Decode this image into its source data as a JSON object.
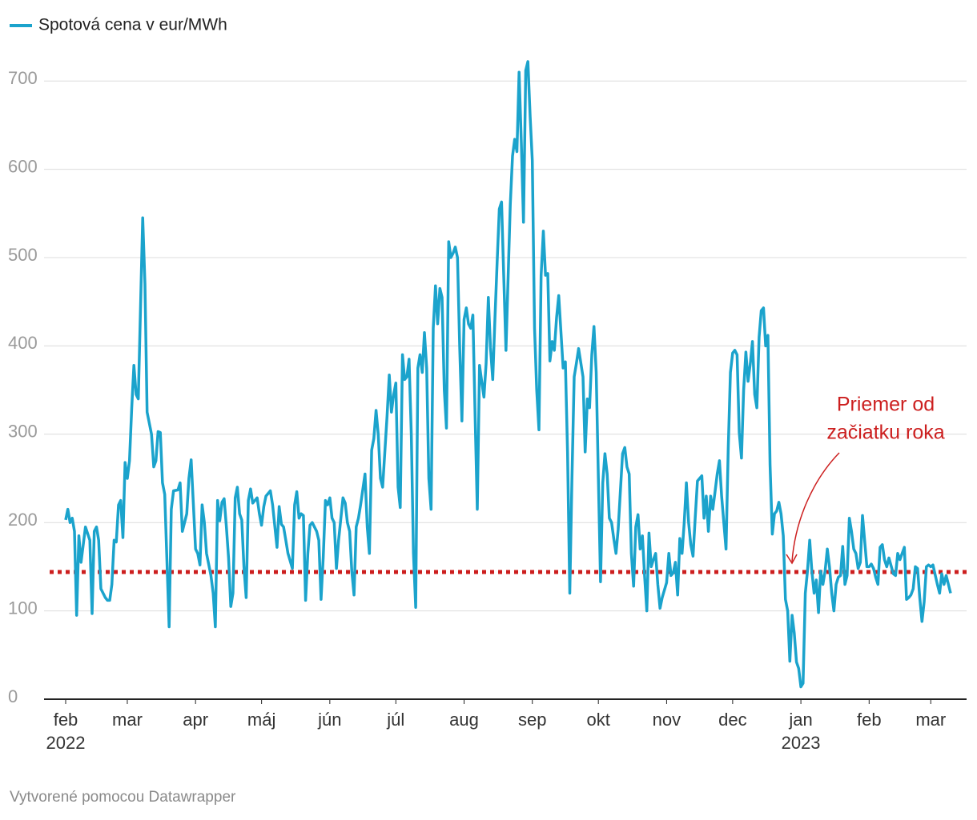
{
  "chart_data": {
    "type": "line",
    "x": [
      0,
      1,
      2,
      3,
      4,
      5,
      6,
      7,
      9,
      11,
      12,
      13,
      14,
      15,
      16,
      18,
      19,
      20,
      21,
      22,
      23,
      24,
      25,
      26,
      27,
      28,
      29,
      30,
      31,
      32,
      33,
      35,
      36,
      37,
      39,
      40,
      41,
      42,
      43,
      44,
      45,
      47,
      48,
      49,
      51,
      52,
      53,
      55,
      56,
      57,
      58,
      59,
      60,
      61,
      62,
      63,
      64,
      66,
      67,
      68,
      69,
      70,
      71,
      72,
      73,
      74,
      75,
      76,
      77,
      78,
      79,
      80,
      81,
      82,
      83,
      84,
      85,
      87,
      88,
      89,
      90,
      91,
      93,
      94,
      96,
      97,
      98,
      99,
      100,
      101,
      103,
      104,
      105,
      106,
      107,
      108,
      109,
      110,
      111,
      112,
      114,
      115,
      116,
      117,
      118,
      119,
      120,
      121,
      122,
      123,
      124,
      126,
      127,
      128,
      129,
      130,
      131,
      132,
      133,
      134,
      136,
      137,
      138,
      139,
      140,
      141,
      142,
      143,
      144,
      146,
      147,
      148,
      149,
      150,
      151,
      152,
      153,
      154,
      155,
      156,
      157,
      158,
      159,
      160,
      161,
      162,
      163,
      164,
      165,
      166,
      167,
      168,
      169,
      170,
      171,
      172,
      173,
      174,
      175,
      176,
      177,
      178,
      179,
      180,
      181,
      182,
      183,
      184,
      185,
      186,
      187,
      188,
      189,
      190,
      191,
      192,
      193,
      194,
      195,
      196,
      197,
      198,
      199,
      200,
      202,
      203,
      204,
      205,
      206,
      207,
      208,
      209,
      210,
      211,
      212,
      213,
      214,
      215,
      216,
      217,
      218,
      219,
      220,
      221,
      222,
      223,
      224,
      226,
      227,
      228,
      229,
      230,
      231,
      232,
      233,
      235,
      236,
      237,
      238,
      239,
      240,
      241,
      242,
      243,
      244,
      245,
      246,
      247,
      248,
      249,
      250,
      251,
      253,
      254,
      255,
      256,
      257,
      258,
      259,
      260,
      261,
      262,
      263,
      264,
      265,
      266,
      267,
      268,
      269,
      270,
      271,
      273,
      274,
      275,
      276,
      277,
      278,
      279,
      280,
      281,
      282,
      283,
      284,
      285,
      286,
      287,
      289,
      290,
      291,
      292,
      293,
      294,
      295,
      296,
      297,
      298,
      300,
      301,
      302,
      303,
      304,
      305,
      306,
      307,
      308,
      309,
      310,
      311,
      312,
      313,
      314,
      315,
      316,
      317,
      318,
      319,
      320,
      321,
      322,
      323,
      324,
      325,
      326,
      327,
      328,
      329,
      330,
      331,
      332,
      333,
      334,
      335,
      336,
      337,
      338,
      339,
      340,
      341,
      342,
      343,
      344,
      345,
      346,
      347,
      348,
      349,
      350,
      351,
      352,
      353,
      354,
      355,
      356,
      357,
      358,
      359,
      360,
      361,
      362,
      364,
      365,
      366,
      367,
      368,
      369,
      370,
      371,
      372,
      373,
      374,
      376,
      377,
      378,
      379,
      380,
      381,
      382,
      383,
      384,
      385,
      386,
      387,
      388,
      389,
      390,
      391,
      392,
      393,
      394,
      396,
      397,
      398,
      399,
      400,
      401,
      402
    ],
    "series": [
      {
        "name": "Spotová cena v eur/MWh",
        "color": "#1ba3cc",
        "values": [
          203,
          215,
          200,
          205,
          190,
          95,
          185,
          155,
          195,
          180,
          97,
          190,
          195,
          180,
          125,
          115,
          112,
          112,
          130,
          180,
          178,
          220,
          225,
          183,
          268,
          250,
          270,
          330,
          378,
          345,
          340,
          545,
          470,
          325,
          300,
          263,
          270,
          303,
          302,
          245,
          232,
          82,
          215,
          236,
          237,
          245,
          190,
          210,
          250,
          271,
          222,
          170,
          165,
          152,
          220,
          200,
          165,
          140,
          120,
          82,
          225,
          202,
          223,
          227,
          195,
          160,
          105,
          120,
          228,
          240,
          210,
          203,
          150,
          115,
          225,
          238,
          222,
          228,
          210,
          197,
          218,
          230,
          236,
          220,
          172,
          218,
          198,
          195,
          180,
          165,
          148,
          220,
          235,
          205,
          210,
          208,
          112,
          165,
          197,
          200,
          190,
          180,
          113,
          160,
          225,
          220,
          228,
          205,
          200,
          148,
          180,
          228,
          222,
          200,
          190,
          145,
          118,
          195,
          205,
          220,
          255,
          195,
          165,
          282,
          295,
          327,
          300,
          250,
          240,
          320,
          367,
          325,
          345,
          358,
          240,
          217,
          390,
          362,
          365,
          385,
          300,
          165,
          104,
          375,
          390,
          370,
          415,
          375,
          250,
          215,
          420,
          468,
          425,
          465,
          455,
          350,
          307,
          518,
          500,
          505,
          512,
          500,
          400,
          315,
          430,
          443,
          425,
          420,
          435,
          320,
          215,
          378,
          360,
          342,
          380,
          455,
          398,
          362,
          430,
          495,
          555,
          563,
          480,
          395,
          560,
          615,
          634,
          620,
          710,
          630,
          540,
          712,
          722,
          660,
          610,
          420,
          350,
          305,
          480,
          530,
          480,
          482,
          383,
          405,
          395,
          432,
          457,
          375,
          382,
          280,
          120,
          250,
          365,
          380,
          397,
          365,
          280,
          340,
          330,
          390,
          422,
          370,
          250,
          133,
          245,
          278,
          255,
          205,
          200,
          182,
          165,
          192,
          278,
          285,
          263,
          255,
          165,
          128,
          195,
          209,
          170,
          185,
          140,
          100,
          188,
          150,
          158,
          165,
          130,
          103,
          115,
          132,
          165,
          140,
          143,
          155,
          118,
          182,
          165,
          200,
          245,
          200,
          175,
          162,
          205,
          247,
          253,
          205,
          230,
          190,
          230,
          215,
          235,
          255,
          270,
          230,
          170,
          285,
          370,
          392,
          395,
          390,
          302,
          273,
          350,
          393,
          360,
          380,
          405,
          345,
          330,
          410,
          440,
          443,
          400,
          412,
          265,
          187,
          210,
          213,
          223,
          210,
          185,
          113,
          100,
          43,
          95,
          75,
          42,
          35,
          14,
          18,
          120,
          145,
          180,
          145,
          120,
          135,
          98,
          145,
          130,
          145,
          170,
          150,
          120,
          100,
          130,
          138,
          140,
          173,
          130,
          140,
          205,
          190,
          170,
          165,
          148,
          155,
          208,
          150,
          150,
          153,
          148,
          138,
          130,
          172,
          175,
          158,
          150,
          160,
          142,
          140,
          165,
          158,
          165,
          172,
          113,
          115,
          118,
          125,
          150,
          148,
          115,
          88,
          110,
          150,
          152,
          150,
          152,
          130,
          120,
          142,
          130,
          140,
          130,
          120
        ]
      }
    ],
    "xlim": [
      0,
      402
    ],
    "xticks": [
      {
        "value": 0,
        "label": "feb"
      },
      {
        "value": 28,
        "label": "mar"
      },
      {
        "value": 59,
        "label": "apr"
      },
      {
        "value": 89,
        "label": "máj"
      },
      {
        "value": 120,
        "label": "jún"
      },
      {
        "value": 150,
        "label": "júl"
      },
      {
        "value": 181,
        "label": "aug"
      },
      {
        "value": 212,
        "label": "sep"
      },
      {
        "value": 242,
        "label": "okt"
      },
      {
        "value": 273,
        "label": "nov"
      },
      {
        "value": 303,
        "label": "dec"
      },
      {
        "value": 334,
        "label": "jan"
      },
      {
        "value": 365,
        "label": "feb"
      },
      {
        "value": 393,
        "label": "mar"
      }
    ],
    "year_labels": [
      {
        "value": 0,
        "label": "2022"
      },
      {
        "value": 334,
        "label": "2023"
      }
    ],
    "ylim": [
      0,
      750
    ],
    "yticks": [
      0,
      100,
      200,
      300,
      400,
      500,
      600,
      700
    ],
    "grid": true,
    "reference_line": {
      "value": 144,
      "color": "#cc1f1f"
    },
    "annotation": {
      "lines": [
        "Priemer od",
        "začiatku roka"
      ],
      "color": "#cc1f1f"
    },
    "credit": "Vytvorené pomocou Datawrapper"
  }
}
